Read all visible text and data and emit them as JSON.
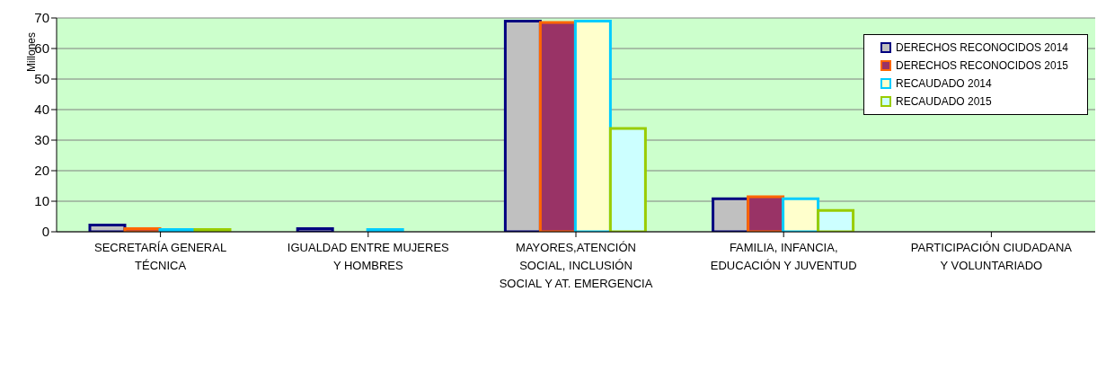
{
  "chart_data": {
    "type": "bar",
    "ylabel": "Millones",
    "categories": [
      "SECRETARÍA GENERAL TÉCNICA",
      "IGUALDAD ENTRE MUJERES Y HOMBRES",
      "MAYORES,ATENCIÓN SOCIAL, INCLUSIÓN SOCIAL Y AT. EMERGENCIA",
      "FAMILIA, INFANCIA, EDUCACIÓN Y JUVENTUD",
      "PARTICIPACIÓN CIUDADANA Y VOLUNTARIADO"
    ],
    "series": [
      {
        "name": "DERECHOS RECONOCIDOS 2014",
        "color": "#000080",
        "values": [
          2.2,
          1.0,
          69,
          10.8,
          0
        ]
      },
      {
        "name": "DERECHOS RECONOCIDOS 2015",
        "color": "#ff6600",
        "values": [
          1.0,
          0,
          68.5,
          11.5,
          0
        ]
      },
      {
        "name": "RECAUDADO 2014",
        "color": "#00ccff",
        "values": [
          0.7,
          0.7,
          69,
          10.8,
          0
        ]
      },
      {
        "name": "RECAUDADO 2015",
        "color": "#99cc00",
        "values": [
          0.7,
          0,
          33.8,
          7,
          0
        ]
      }
    ],
    "ylim": [
      0,
      70
    ],
    "yticks": [
      0,
      10,
      20,
      30,
      40,
      50,
      60,
      70
    ],
    "grid": "y",
    "legend": "top right"
  }
}
